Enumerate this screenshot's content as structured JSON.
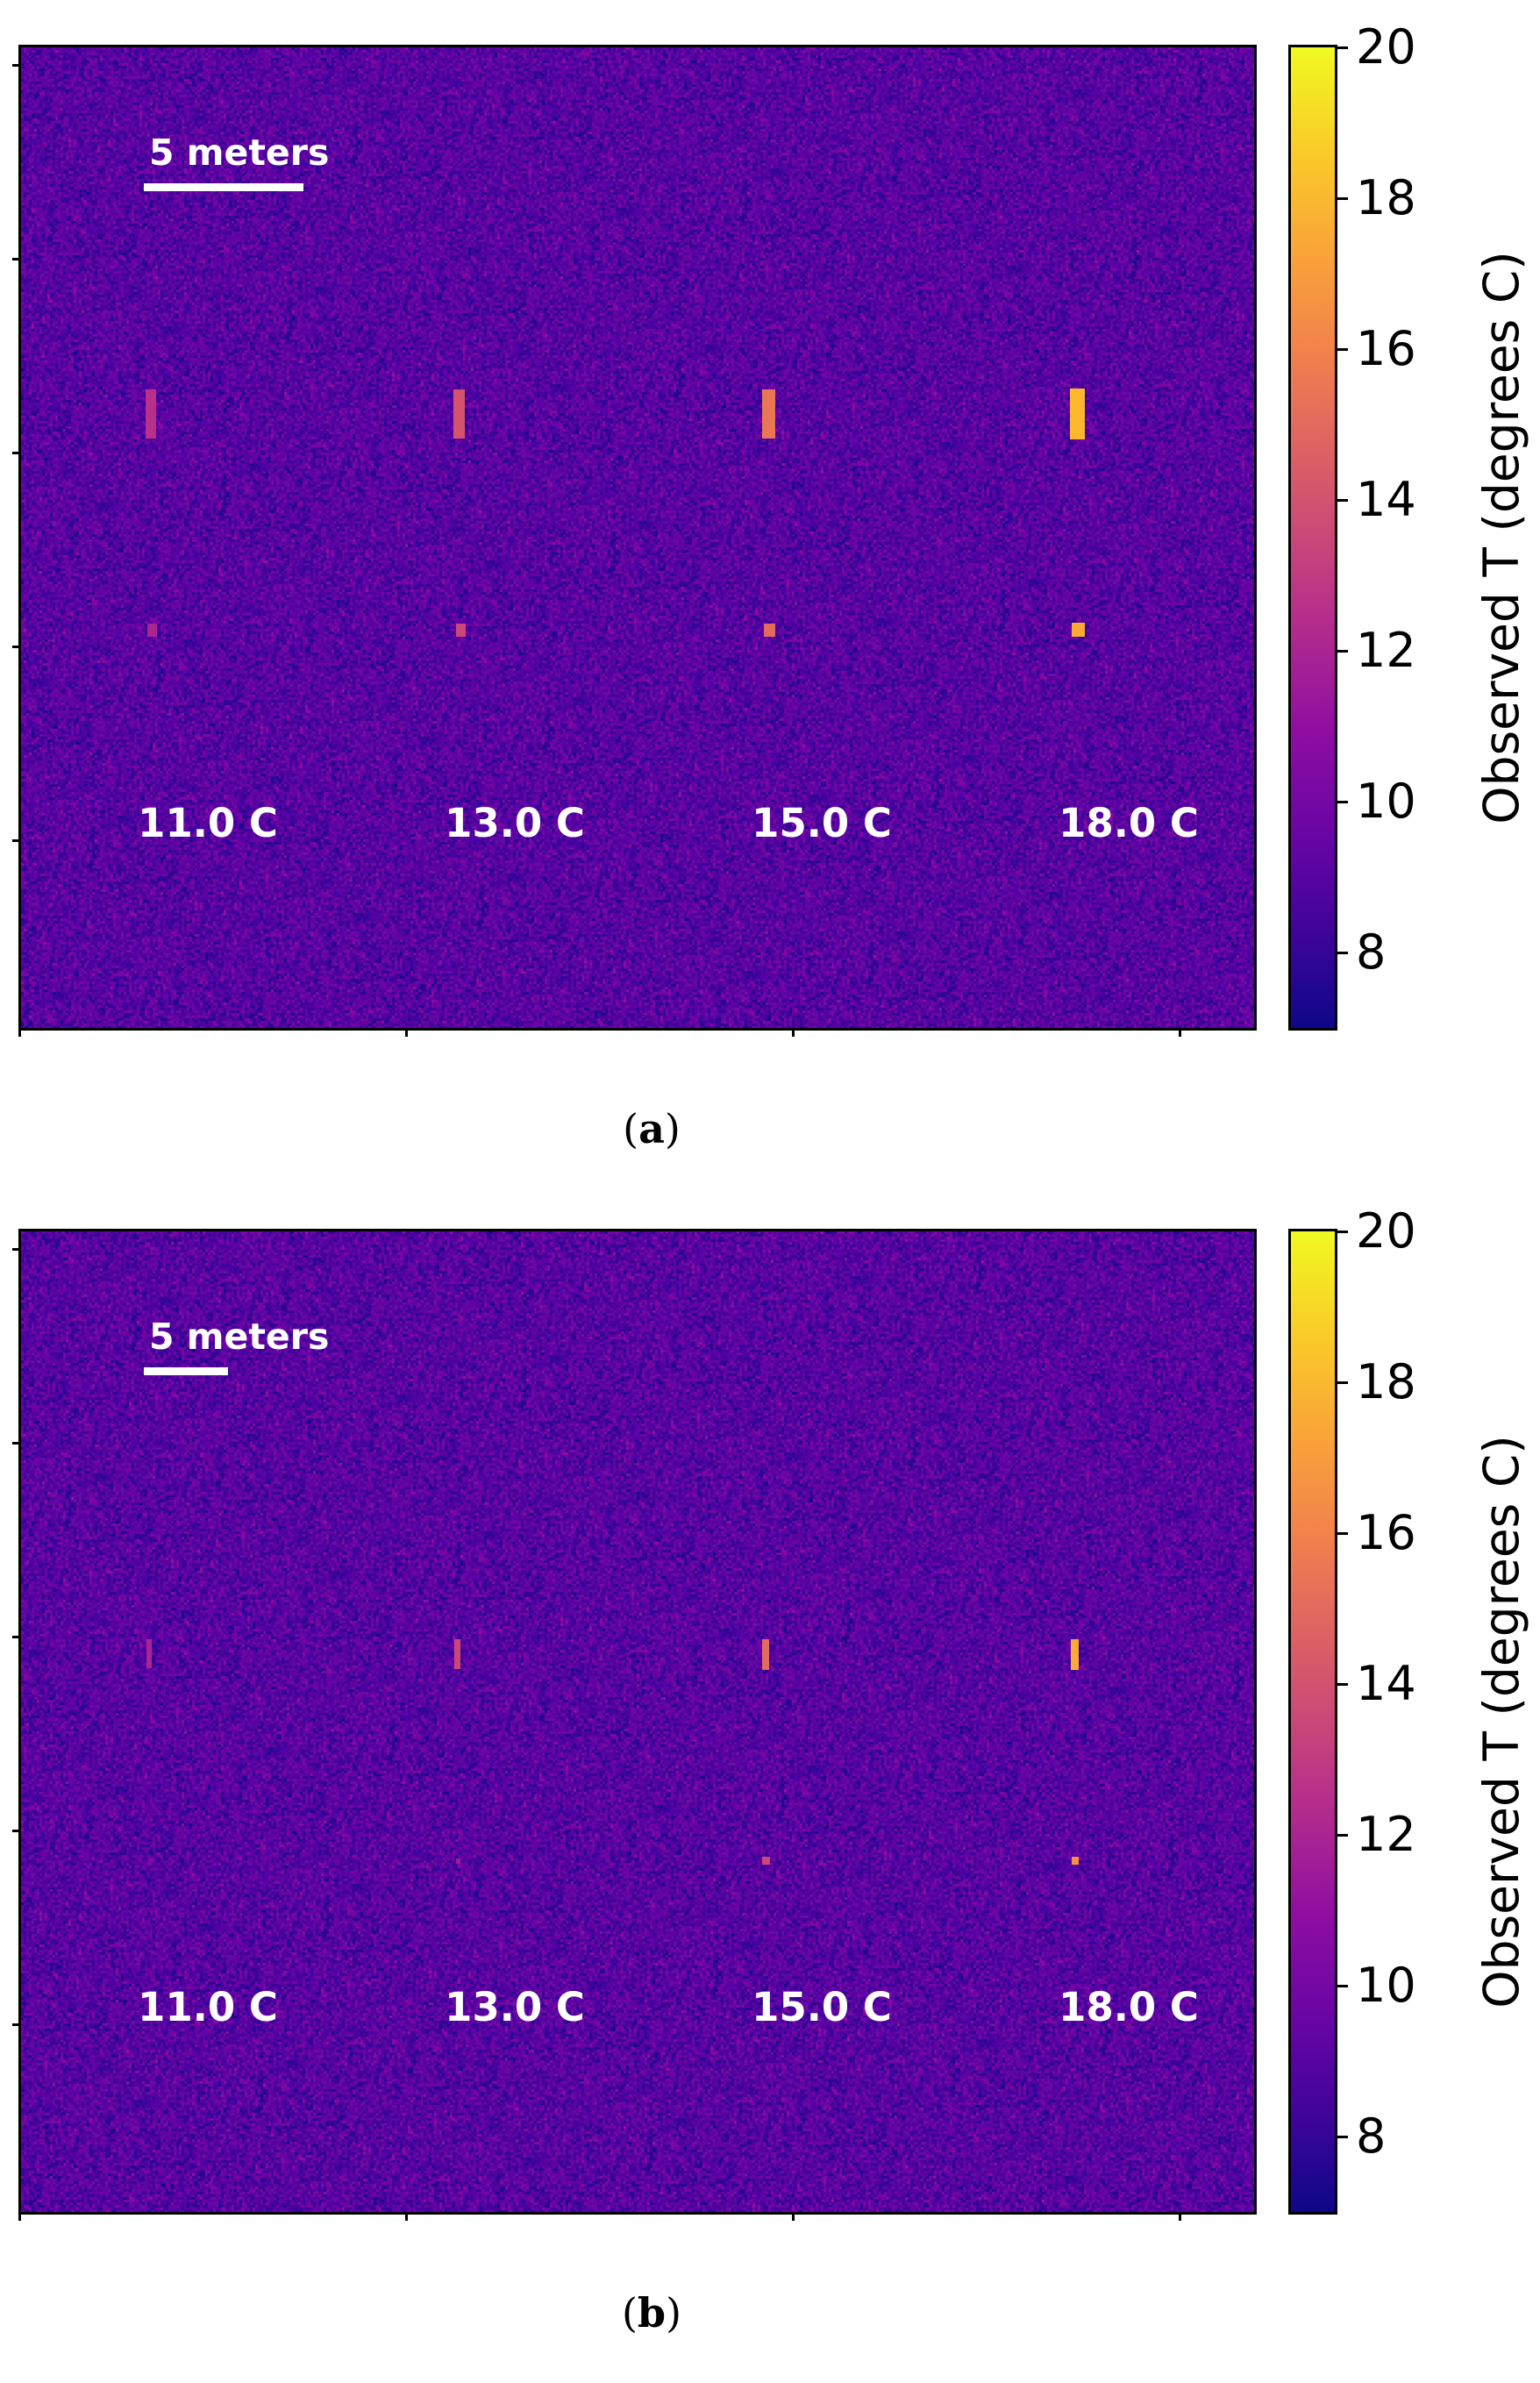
{
  "chart_data": [
    {
      "type": "heatmap",
      "panel_label": "a",
      "scale_bar_label": "5 meters",
      "colorbar": {
        "label": "Observed T (degrees C)",
        "range": [
          7,
          20
        ],
        "ticks": [
          8,
          10,
          12,
          14,
          16,
          18,
          20
        ],
        "colormap": "plasma"
      },
      "background_T": 9.0,
      "targets": [
        {
          "label": "11.0 C",
          "temperature": 11.0,
          "observed_bar": 12.5,
          "observed_dot": 12.0
        },
        {
          "label": "13.0 C",
          "temperature": 13.0,
          "observed_bar": 14.0,
          "observed_dot": 13.5
        },
        {
          "label": "15.0 C",
          "temperature": 15.0,
          "observed_bar": 15.5,
          "observed_dot": 15.0
        },
        {
          "label": "18.0 C",
          "temperature": 18.0,
          "observed_bar": 18.0,
          "observed_dot": 17.5
        }
      ]
    },
    {
      "type": "heatmap",
      "panel_label": "b",
      "scale_bar_label": "5 meters",
      "colorbar": {
        "label": "Observed T (degrees C)",
        "range": [
          7,
          20
        ],
        "ticks": [
          8,
          10,
          12,
          14,
          16,
          18,
          20
        ],
        "colormap": "plasma"
      },
      "background_T": 9.0,
      "targets": [
        {
          "label": "11.0 C",
          "temperature": 11.0,
          "observed_bar": 12.0,
          "observed_dot": 10.5
        },
        {
          "label": "13.0 C",
          "temperature": 13.0,
          "observed_bar": 13.5,
          "observed_dot": 11.5
        },
        {
          "label": "15.0 C",
          "temperature": 15.0,
          "observed_bar": 15.0,
          "observed_dot": 13.5
        },
        {
          "label": "18.0 C",
          "temperature": 18.0,
          "observed_bar": 17.5,
          "observed_dot": 16.5
        }
      ]
    }
  ]
}
